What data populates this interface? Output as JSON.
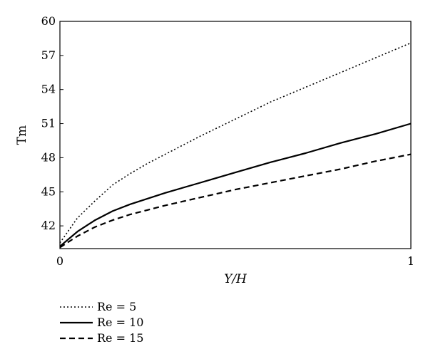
{
  "chart_data": {
    "type": "line",
    "xlabel": "Y/H",
    "ylabel": "Tm",
    "xlim": [
      0,
      1
    ],
    "ylim": [
      40,
      60
    ],
    "xticks": [
      0,
      1
    ],
    "xtick_labels": [
      "0",
      "1"
    ],
    "yticks": [
      42,
      45,
      48,
      51,
      54,
      57,
      60
    ],
    "ytick_labels": [
      "42",
      "45",
      "48",
      "51",
      "54",
      "57",
      "60"
    ],
    "grid": false,
    "legend_position": "bottom-left",
    "series": [
      {
        "name": "Re = 5",
        "style": "dotted",
        "color": "#000000",
        "x": [
          0,
          0.05,
          0.1,
          0.15,
          0.2,
          0.25,
          0.3,
          0.4,
          0.5,
          0.6,
          0.7,
          0.8,
          0.9,
          1.0
        ],
        "y": [
          40.5,
          42.7,
          44.2,
          45.6,
          46.6,
          47.5,
          48.3,
          49.9,
          51.4,
          52.9,
          54.2,
          55.5,
          56.8,
          58.1
        ]
      },
      {
        "name": "Re = 10",
        "style": "solid",
        "color": "#000000",
        "x": [
          0,
          0.05,
          0.1,
          0.15,
          0.2,
          0.25,
          0.3,
          0.4,
          0.5,
          0.6,
          0.65,
          0.7,
          0.8,
          0.9,
          1.0
        ],
        "y": [
          40.2,
          41.5,
          42.5,
          43.3,
          43.9,
          44.4,
          44.9,
          45.8,
          46.7,
          47.6,
          48.0,
          48.4,
          49.3,
          50.1,
          51.0
        ]
      },
      {
        "name": "Re = 15",
        "style": "dashed",
        "color": "#000000",
        "x": [
          0,
          0.05,
          0.1,
          0.15,
          0.2,
          0.25,
          0.3,
          0.4,
          0.5,
          0.6,
          0.65,
          0.7,
          0.8,
          0.9,
          1.0
        ],
        "y": [
          40.1,
          41.1,
          41.9,
          42.5,
          43.0,
          43.4,
          43.8,
          44.5,
          45.2,
          45.8,
          46.1,
          46.4,
          47.0,
          47.7,
          48.3
        ]
      }
    ]
  }
}
